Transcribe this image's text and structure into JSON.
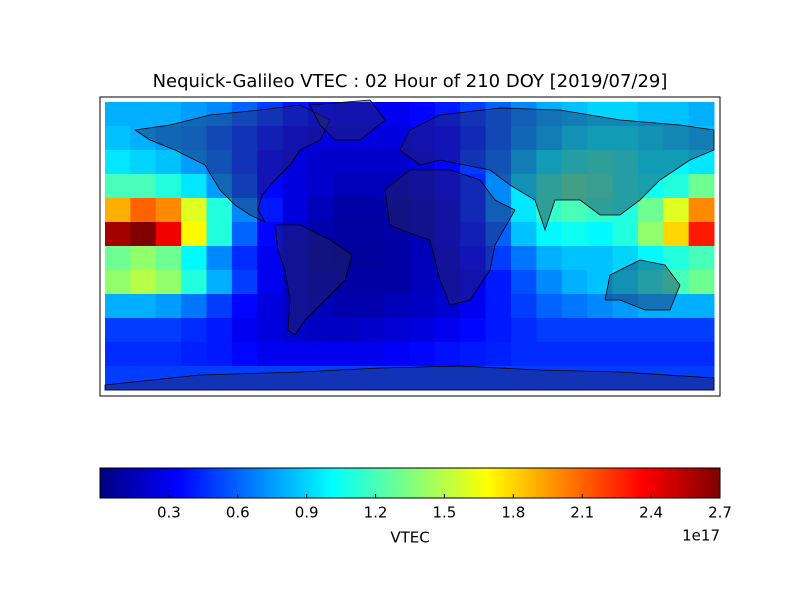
{
  "chart_data": {
    "type": "heatmap",
    "title": "Nequick-Galileo VTEC : 02 Hour of 210 DOY [2019/07/29]",
    "colormap": "jet",
    "values": [
      [
        0.8,
        0.8,
        0.8,
        0.75,
        0.7,
        0.6,
        0.5,
        0.4,
        0.35,
        0.3,
        0.3,
        0.3,
        0.35,
        0.4,
        0.5,
        0.6,
        0.7,
        0.8,
        0.85,
        0.9,
        0.9,
        0.85,
        0.85,
        0.8
      ],
      [
        0.85,
        0.8,
        0.75,
        0.7,
        0.6,
        0.5,
        0.4,
        0.3,
        0.25,
        0.25,
        0.25,
        0.25,
        0.3,
        0.35,
        0.45,
        0.6,
        0.75,
        0.85,
        0.95,
        1.0,
        1.0,
        0.95,
        0.9,
        0.85
      ],
      [
        0.95,
        0.9,
        0.85,
        0.75,
        0.65,
        0.5,
        0.35,
        0.25,
        0.2,
        0.2,
        0.2,
        0.2,
        0.25,
        0.35,
        0.5,
        0.65,
        0.85,
        1.0,
        1.1,
        1.15,
        1.1,
        1.0,
        1.0,
        0.95
      ],
      [
        1.2,
        1.2,
        1.1,
        0.95,
        0.75,
        0.55,
        0.35,
        0.25,
        0.2,
        0.15,
        0.15,
        0.15,
        0.2,
        0.3,
        0.45,
        0.7,
        0.95,
        1.15,
        1.25,
        1.2,
        1.1,
        1.05,
        1.1,
        1.3
      ],
      [
        1.9,
        2.1,
        2.0,
        1.6,
        1.1,
        0.7,
        0.4,
        0.25,
        0.15,
        0.1,
        0.1,
        0.1,
        0.15,
        0.25,
        0.45,
        0.7,
        0.95,
        1.15,
        1.2,
        1.15,
        1.1,
        1.3,
        1.6,
        2.0
      ],
      [
        2.6,
        2.7,
        2.4,
        1.7,
        1.1,
        0.6,
        0.35,
        0.2,
        0.12,
        0.08,
        0.08,
        0.1,
        0.15,
        0.25,
        0.4,
        0.6,
        0.85,
        1.0,
        1.05,
        1.0,
        1.1,
        1.4,
        1.8,
        2.3
      ],
      [
        1.3,
        1.4,
        1.3,
        1.0,
        0.7,
        0.45,
        0.3,
        0.18,
        0.1,
        0.07,
        0.07,
        0.1,
        0.15,
        0.22,
        0.35,
        0.5,
        0.65,
        0.8,
        0.85,
        0.85,
        0.9,
        1.0,
        1.1,
        1.2
      ],
      [
        1.4,
        1.5,
        1.4,
        1.1,
        0.8,
        0.5,
        0.3,
        0.18,
        0.12,
        0.1,
        0.1,
        0.1,
        0.15,
        0.2,
        0.3,
        0.4,
        0.55,
        0.7,
        0.8,
        0.85,
        0.95,
        1.1,
        1.2,
        1.3
      ],
      [
        0.8,
        0.8,
        0.75,
        0.65,
        0.5,
        0.35,
        0.25,
        0.18,
        0.15,
        0.12,
        0.12,
        0.15,
        0.18,
        0.22,
        0.3,
        0.4,
        0.5,
        0.6,
        0.65,
        0.7,
        0.75,
        0.8,
        0.8,
        0.8
      ],
      [
        0.5,
        0.5,
        0.5,
        0.45,
        0.4,
        0.3,
        0.25,
        0.2,
        0.18,
        0.18,
        0.2,
        0.22,
        0.25,
        0.3,
        0.35,
        0.4,
        0.45,
        0.5,
        0.5,
        0.5,
        0.5,
        0.5,
        0.5,
        0.5
      ],
      [
        0.45,
        0.45,
        0.45,
        0.42,
        0.4,
        0.35,
        0.3,
        0.3,
        0.3,
        0.3,
        0.3,
        0.32,
        0.35,
        0.38,
        0.4,
        0.42,
        0.45,
        0.45,
        0.45,
        0.45,
        0.45,
        0.45,
        0.45,
        0.45
      ],
      [
        0.5,
        0.5,
        0.5,
        0.5,
        0.5,
        0.5,
        0.5,
        0.5,
        0.5,
        0.5,
        0.5,
        0.5,
        0.5,
        0.5,
        0.5,
        0.5,
        0.5,
        0.5,
        0.5,
        0.5,
        0.5,
        0.5,
        0.5,
        0.5
      ]
    ],
    "colorbar": {
      "label": "VTEC",
      "offset_label": "1e17",
      "clim": [
        0,
        2.7
      ],
      "ticks": [
        0.3,
        0.6,
        0.9,
        1.2,
        1.5,
        1.8,
        2.1,
        2.4,
        2.7
      ]
    }
  }
}
